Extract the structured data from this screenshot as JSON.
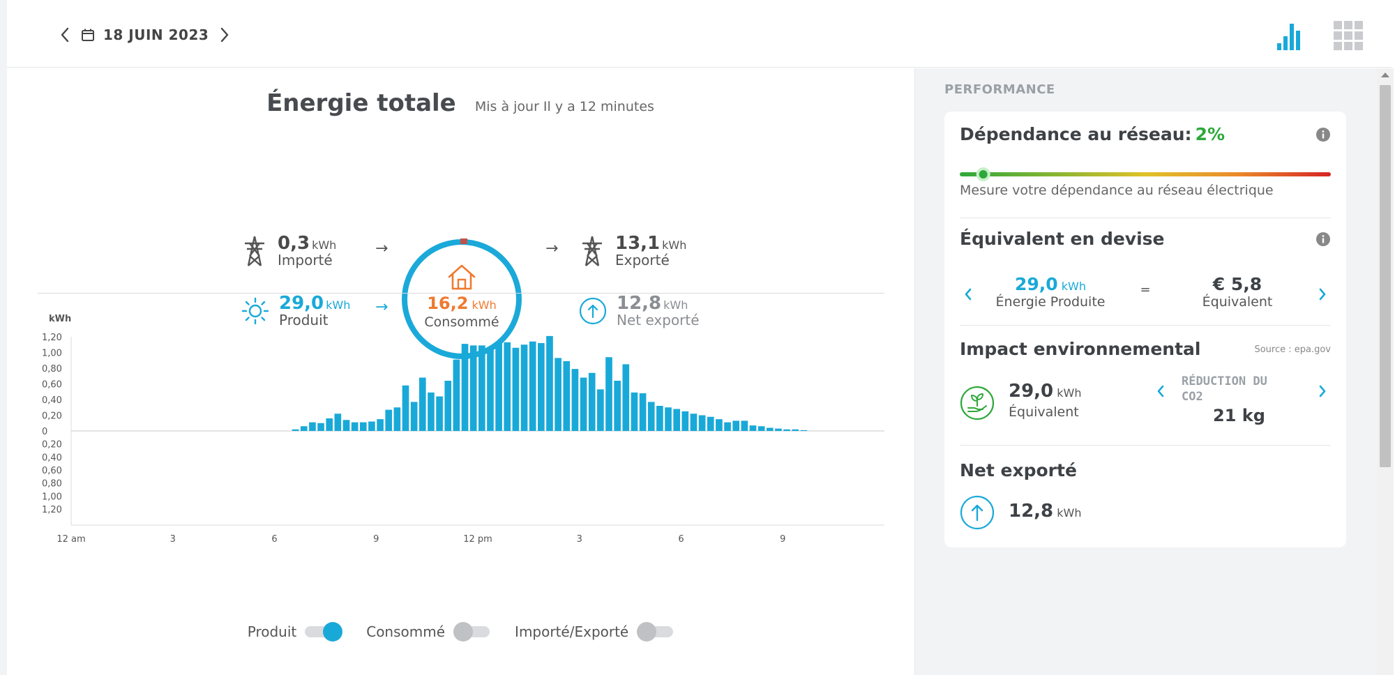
{
  "header": {
    "date": "18 JUIN 2023"
  },
  "main": {
    "title": "Énergie totale",
    "updated": "Mis à jour Il y a 12 minutes",
    "flows": {
      "imported": {
        "value": "0,3",
        "unit": "kWh",
        "label": "Importé"
      },
      "produced": {
        "value": "29,0",
        "unit": "kWh",
        "label": "Produit"
      },
      "consumed": {
        "value": "16,2",
        "unit": "kWh",
        "label": "Consommé"
      },
      "exported": {
        "value": "13,1",
        "unit": "kWh",
        "label": "Exporté"
      },
      "net_exported": {
        "value": "12,8",
        "unit": "kWh",
        "label": "Net exporté"
      }
    },
    "arrow_glyph": "→"
  },
  "legend": {
    "produced": "Produit",
    "consumed": "Consommé",
    "import_export": "Importé/Exporté"
  },
  "chart_data": {
    "type": "bar",
    "ylabel": "kWh",
    "y_ticks_positive": [
      "1,20",
      "1,00",
      "0,80",
      "0,60",
      "0,40",
      "0,20",
      "0"
    ],
    "y_ticks_negative": [
      "0,20",
      "0,40",
      "0,60",
      "0,80",
      "1,00",
      "1,20"
    ],
    "ylim": [
      -1.4,
      1.4
    ],
    "x_ticks": [
      "12 am",
      "3",
      "6",
      "9",
      "12 pm",
      "3",
      "6",
      "9"
    ],
    "x_range_hours": [
      0,
      24
    ],
    "series": [
      {
        "name": "Produit",
        "color": "#19a9d8",
        "interval_minutes": 15,
        "start_hour": 6.5,
        "values": [
          0.02,
          0.06,
          0.11,
          0.1,
          0.16,
          0.22,
          0.14,
          0.11,
          0.11,
          0.12,
          0.15,
          0.27,
          0.3,
          0.58,
          0.37,
          0.68,
          0.49,
          0.44,
          0.64,
          0.91,
          1.11,
          1.09,
          1.09,
          1.06,
          1.14,
          1.13,
          1.06,
          1.1,
          1.14,
          1.12,
          1.21,
          0.93,
          0.89,
          0.79,
          0.68,
          0.74,
          0.53,
          0.94,
          0.64,
          0.85,
          0.49,
          0.48,
          0.37,
          0.32,
          0.3,
          0.28,
          0.25,
          0.22,
          0.2,
          0.18,
          0.15,
          0.11,
          0.13,
          0.13,
          0.07,
          0.06,
          0.04,
          0.03,
          0.02,
          0.02,
          0.01
        ]
      }
    ]
  },
  "performance": {
    "label": "PERFORMANCE",
    "dependence": {
      "title": "Dépendance au réseau:",
      "value": "2%",
      "value_fraction": 0.02,
      "description": "Mesure votre dépendance au réseau électrique"
    },
    "currency": {
      "title": "Équivalent en devise",
      "energy_value": "29,0",
      "energy_unit": "kWh",
      "energy_label": "Énergie Produite",
      "equals": "=",
      "money_value": "€ 5,8",
      "money_label": "Équivalent"
    },
    "environment": {
      "title": "Impact environnemental",
      "source": "Source : epa.gov",
      "value": "29,0",
      "unit": "kWh",
      "label": "Équivalent",
      "co2_label": "RÉDUCTION DU CO2",
      "co2_value": "21 kg"
    },
    "net_export": {
      "title": "Net exporté",
      "value": "12,8",
      "unit": "kWh"
    }
  },
  "colors": {
    "accent": "#19a9d8",
    "consumed": "#ee7a2f",
    "good": "#2da83a"
  }
}
